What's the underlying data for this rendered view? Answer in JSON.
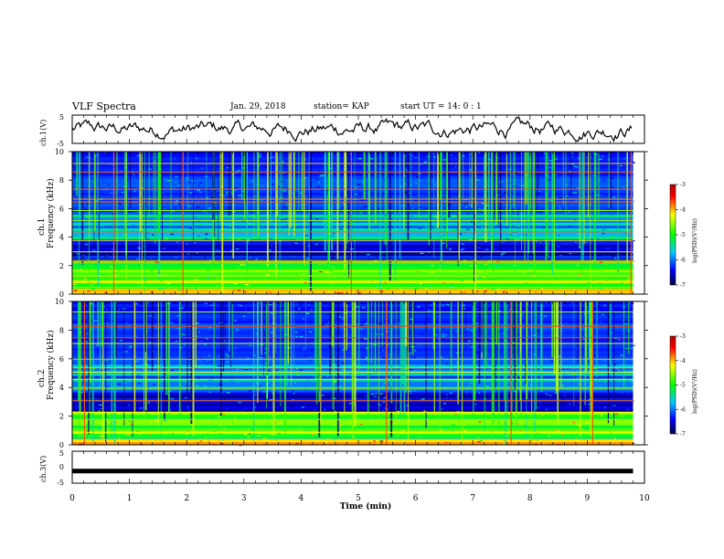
{
  "header": {
    "title": "VLF Spectra",
    "date": "Jan. 29, 2018",
    "station": "station= KAP",
    "start": "start UT =   14: 0  : 1"
  },
  "colorbar": {
    "label": "log(PSD)(V²/Hz)",
    "ticks": [
      "-3",
      "-4",
      "-5",
      "-6",
      "-7"
    ],
    "colors": [
      "#ff0000",
      "#ffff00",
      "#00ff00",
      "#00c8ff",
      "#0000ff",
      "#000064"
    ]
  },
  "chart_data": [
    {
      "type": "line",
      "name": "ch1-waveform",
      "ylabel": "ch.1(V)",
      "xlim": [
        0,
        10
      ],
      "ylim": [
        -5,
        5
      ],
      "yticks": [
        "5",
        "-5"
      ],
      "line_color": "#000000"
    },
    {
      "type": "heatmap",
      "name": "ch1-spectrogram",
      "ylabel_top": "ch.1",
      "ylabel": "Frequency (kHz)",
      "xlim": [
        0,
        9.8
      ],
      "ylim": [
        0,
        10
      ],
      "yticks": [
        "0",
        "2",
        "4",
        "6",
        "8",
        "10"
      ],
      "colorscale_range": [
        -7,
        -3
      ]
    },
    {
      "type": "heatmap",
      "name": "ch2-spectrogram",
      "ylabel_top": "ch.2",
      "ylabel": "Frequency (kHz)",
      "xlim": [
        0,
        9.8
      ],
      "ylim": [
        0,
        10
      ],
      "yticks": [
        "0",
        "2",
        "4",
        "6",
        "8",
        "10"
      ],
      "colorscale_range": [
        -7,
        -3
      ]
    },
    {
      "type": "line",
      "name": "ch3-waveform",
      "ylabel": "ch.3(V)",
      "xlim": [
        0,
        10
      ],
      "ylim": [
        -5,
        5
      ],
      "yticks": [
        "5",
        "0",
        "-5"
      ],
      "constant_value": -1.2
    }
  ],
  "xaxis": {
    "label": "Time (min)",
    "ticks": [
      "0",
      "1",
      "2",
      "3",
      "4",
      "5",
      "6",
      "7",
      "8",
      "9",
      "10"
    ],
    "range": [
      0,
      10
    ]
  }
}
